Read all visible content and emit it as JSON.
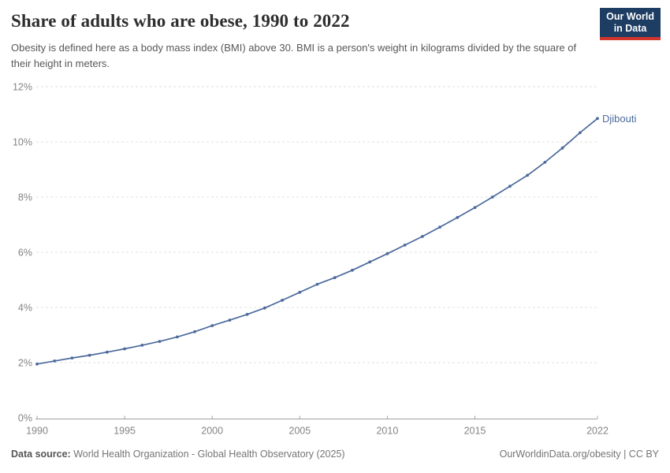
{
  "header": {
    "title": "Share of adults who are obese, 1990 to 2022",
    "subtitle": "Obesity is defined here as a body mass index (BMI) above 30. BMI is a person's weight in kilograms divided by the square of their height in meters."
  },
  "logo": {
    "line1": "Our World",
    "line2": "in Data",
    "bg_color": "#1d3d63",
    "accent_color": "#d2352b"
  },
  "chart_data": {
    "type": "line",
    "title": "Share of adults who are obese, 1990 to 2022",
    "x": [
      1990,
      1991,
      1992,
      1993,
      1994,
      1995,
      1996,
      1997,
      1998,
      1999,
      2000,
      2001,
      2002,
      2003,
      2004,
      2005,
      2006,
      2007,
      2008,
      2009,
      2010,
      2011,
      2012,
      2013,
      2014,
      2015,
      2016,
      2017,
      2018,
      2019,
      2020,
      2021,
      2022
    ],
    "series": [
      {
        "name": "Djibouti",
        "color": "#4c6a9c",
        "values": [
          1.95,
          2.06,
          2.17,
          2.27,
          2.38,
          2.5,
          2.63,
          2.77,
          2.93,
          3.12,
          3.34,
          3.54,
          3.75,
          3.98,
          4.26,
          4.55,
          4.84,
          5.08,
          5.35,
          5.65,
          5.95,
          6.26,
          6.57,
          6.91,
          7.26,
          7.62,
          8.0,
          8.39,
          8.79,
          9.26,
          9.78,
          10.33,
          10.85
        ]
      }
    ],
    "x_ticks": [
      1990,
      1995,
      2000,
      2005,
      2010,
      2015,
      2022
    ],
    "y_ticks": [
      0,
      2,
      4,
      6,
      8,
      10,
      12
    ],
    "y_tick_suffix": "%",
    "xlim": [
      1990,
      2022
    ],
    "ylim": [
      0,
      12
    ],
    "grid": "horizontal dashed",
    "markers": true,
    "legend_position": "end-of-line label"
  },
  "footer": {
    "source_label": "Data source:",
    "source_value": " World Health Organization - Global Health Observatory (2025)",
    "credit": "OurWorldinData.org/obesity | CC BY"
  },
  "colors": {
    "line": "#4c6a9c",
    "grid": "#e0e0e0",
    "axis": "#a1a1a1",
    "tick_label": "#848484"
  }
}
